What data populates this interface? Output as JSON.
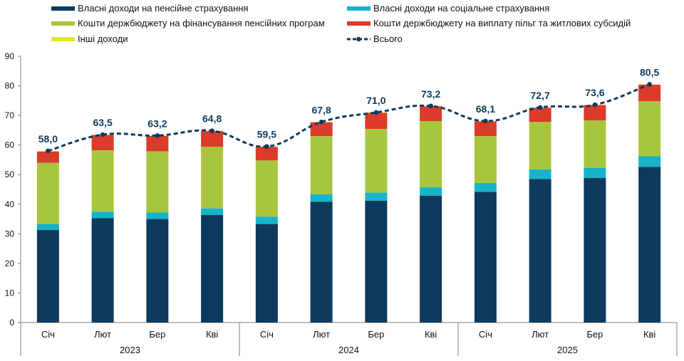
{
  "chart_data": {
    "type": "bar",
    "stacked": true,
    "groups": [
      {
        "label": "2023",
        "categories": [
          "Січ",
          "Лют",
          "Бер",
          "Кві"
        ]
      },
      {
        "label": "2024",
        "categories": [
          "Січ",
          "Лют",
          "Бер",
          "Кві"
        ]
      },
      {
        "label": "2025",
        "categories": [
          "Січ",
          "Лют",
          "Бер",
          "Кві"
        ]
      }
    ],
    "ylim": [
      0,
      90
    ],
    "yticks": [
      0,
      10,
      20,
      30,
      40,
      50,
      60,
      70,
      80,
      90
    ],
    "series": [
      {
        "name": "Власні доходи на пенсійне страхування",
        "color": "#0d3a5e",
        "values": [
          31.3,
          35.3,
          35.0,
          36.4,
          33.3,
          40.8,
          41.2,
          42.9,
          44.2,
          48.5,
          48.9,
          52.6
        ]
      },
      {
        "name": "Власні доходи на соціальне страхування",
        "color": "#17b3c9",
        "values": [
          2.0,
          2.2,
          2.2,
          2.2,
          2.5,
          2.6,
          2.7,
          2.8,
          3.0,
          3.3,
          3.4,
          3.6
        ]
      },
      {
        "name": "Кошти держбюджету на фінансування пенсійних програм",
        "color": "#a8c63d",
        "values": [
          20.7,
          20.7,
          20.7,
          20.8,
          19.0,
          19.6,
          21.5,
          22.4,
          15.8,
          16.0,
          16.0,
          18.6
        ]
      },
      {
        "name": "Кошти держбюджету на виплату пільг та житлових субсидій",
        "color": "#db3b2b",
        "values": [
          3.8,
          5.2,
          5.2,
          5.3,
          4.6,
          4.7,
          5.5,
          5.0,
          5.0,
          4.8,
          5.2,
          5.6
        ]
      },
      {
        "name": "Інші доходи",
        "color": "#e6e62e",
        "values": [
          0.2,
          0.1,
          0.1,
          0.1,
          0.1,
          0.1,
          0.1,
          0.1,
          0.1,
          0.1,
          0.1,
          0.1
        ]
      }
    ],
    "total": {
      "name": "Всього",
      "color": "#0d3a5e",
      "style": "dashed-line-with-markers",
      "values": [
        58.0,
        63.5,
        63.2,
        64.8,
        59.5,
        67.8,
        71.0,
        73.2,
        68.1,
        72.7,
        73.6,
        80.5
      ],
      "labels": [
        "58,0",
        "63,5",
        "63,2",
        "64,8",
        "59,5",
        "67,8",
        "71,0",
        "73,2",
        "68,1",
        "72,7",
        "73,6",
        "80,5"
      ]
    },
    "legend_position": "top",
    "grid": false
  }
}
